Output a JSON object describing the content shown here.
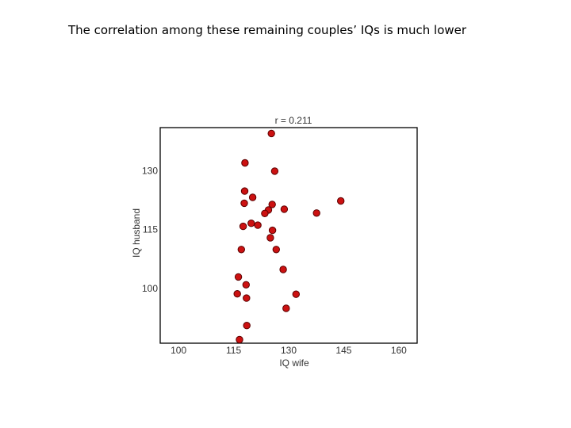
{
  "slide": {
    "title": "The correlation among these remaining couples’ IQs is much lower"
  },
  "colors": {
    "point_fill": "#cc1111",
    "point_stroke": "#5a0000",
    "frame": "#000000",
    "text": "#333333"
  },
  "chart_data": {
    "type": "scatter",
    "title": "r = 0.211",
    "xlabel": "IQ wife",
    "ylabel": "IQ husband",
    "xlim": [
      95,
      165
    ],
    "ylim": [
      86,
      141
    ],
    "xticks": [
      100,
      115,
      130,
      145,
      160
    ],
    "yticks": [
      100,
      115,
      130
    ],
    "grid": false,
    "legend": "none",
    "points": [
      {
        "x": 125.3,
        "y": 139.5
      },
      {
        "x": 118.1,
        "y": 132.0
      },
      {
        "x": 126.2,
        "y": 129.9
      },
      {
        "x": 118.0,
        "y": 124.8
      },
      {
        "x": 120.2,
        "y": 123.2
      },
      {
        "x": 117.9,
        "y": 121.7
      },
      {
        "x": 125.5,
        "y": 121.4
      },
      {
        "x": 144.2,
        "y": 122.3
      },
      {
        "x": 124.5,
        "y": 120.0
      },
      {
        "x": 128.8,
        "y": 120.2
      },
      {
        "x": 123.5,
        "y": 119.1
      },
      {
        "x": 137.6,
        "y": 119.2
      },
      {
        "x": 119.8,
        "y": 116.6
      },
      {
        "x": 121.6,
        "y": 116.1
      },
      {
        "x": 117.6,
        "y": 115.8
      },
      {
        "x": 125.6,
        "y": 114.8
      },
      {
        "x": 125.0,
        "y": 112.9
      },
      {
        "x": 117.1,
        "y": 109.9
      },
      {
        "x": 126.6,
        "y": 109.9
      },
      {
        "x": 128.5,
        "y": 104.8
      },
      {
        "x": 116.3,
        "y": 102.9
      },
      {
        "x": 118.4,
        "y": 100.9
      },
      {
        "x": 116.0,
        "y": 98.6
      },
      {
        "x": 132.0,
        "y": 98.5
      },
      {
        "x": 118.5,
        "y": 97.5
      },
      {
        "x": 129.3,
        "y": 94.9
      },
      {
        "x": 118.6,
        "y": 90.5
      },
      {
        "x": 116.6,
        "y": 86.9
      }
    ]
  }
}
